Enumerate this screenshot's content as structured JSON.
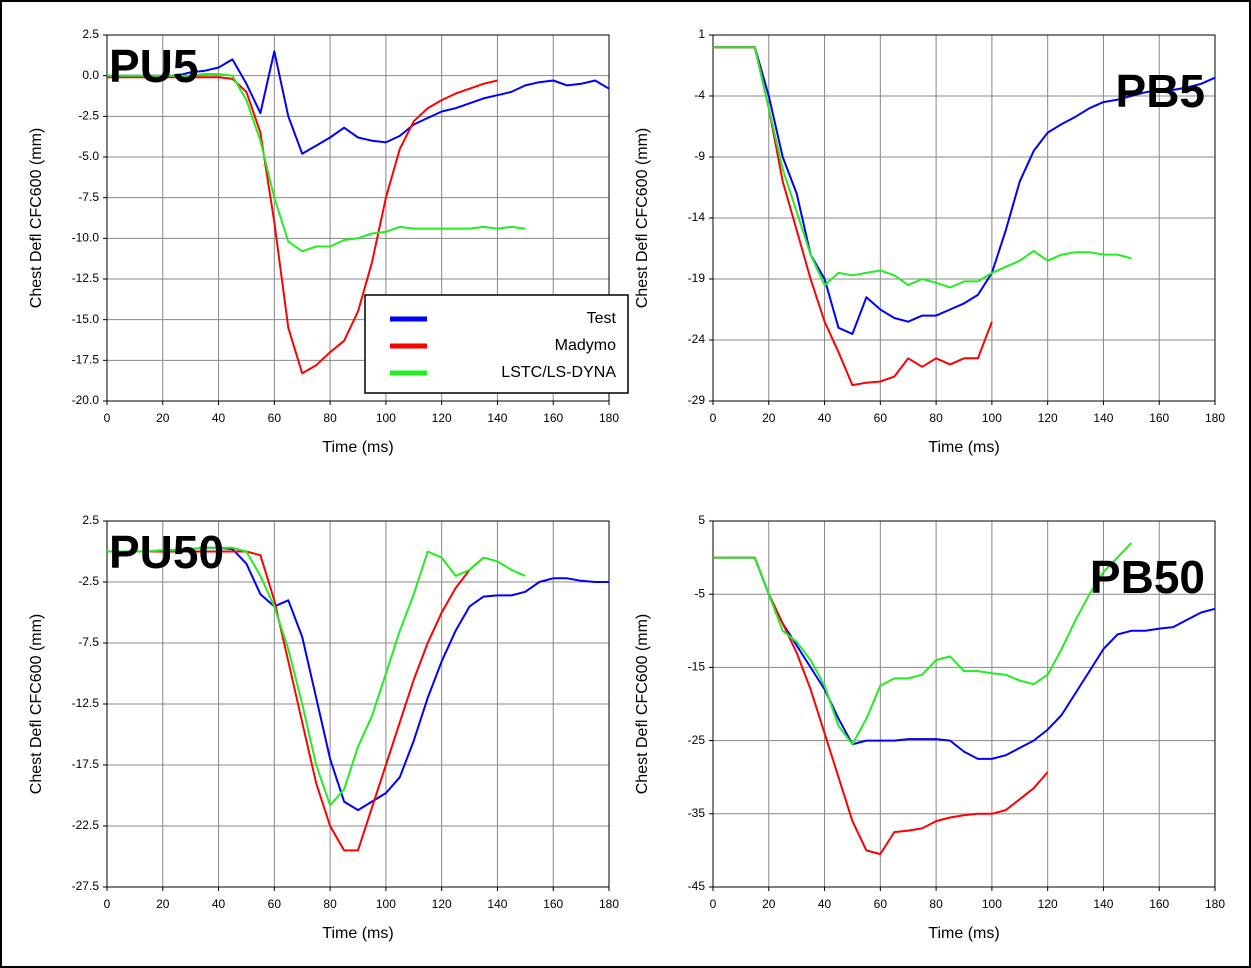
{
  "chart_data": [
    {
      "type": "line",
      "title": "PU5",
      "title_corner": "upper left",
      "x_label": "Time (ms)",
      "y_label": "Chest Defl CFC600 (mm)",
      "x": [
        0,
        5,
        10,
        15,
        20,
        25,
        30,
        35,
        40,
        45,
        50,
        55,
        60,
        65,
        70,
        75,
        80,
        85,
        90,
        95,
        100,
        105,
        110,
        115,
        120,
        125,
        130,
        135,
        140,
        145,
        150,
        155,
        160,
        165,
        170,
        175,
        180
      ],
      "series": [
        {
          "name": "Test",
          "color": "#0000ff",
          "values": [
            0,
            0,
            0,
            0,
            0,
            0,
            0.2,
            0.3,
            0.5,
            1.0,
            -0.5,
            -2.3,
            1.5,
            -2.5,
            -4.8,
            -4.3,
            -3.8,
            -3.2,
            -3.8,
            -4.0,
            -4.1,
            -3.7,
            -3.0,
            -2.6,
            -2.2,
            -2.0,
            -1.7,
            -1.4,
            -1.2,
            -1.0,
            -0.6,
            -0.4,
            -0.3,
            -0.6,
            -0.5,
            -0.3,
            -0.8
          ]
        },
        {
          "name": "Madymo",
          "color": "#ff0000",
          "values": [
            -0.1,
            -0.1,
            -0.1,
            -0.1,
            -0.1,
            -0.1,
            -0.1,
            -0.1,
            -0.1,
            -0.2,
            -1.0,
            -3.5,
            -9,
            -15.5,
            -18.3,
            -17.8,
            -17,
            -16.3,
            -14.5,
            -11.5,
            -7.5,
            -4.5,
            -2.8,
            -2.0,
            -1.5,
            -1.1,
            -0.8,
            -0.5,
            -0.3,
            null,
            null,
            null,
            null,
            null,
            null,
            null,
            null
          ]
        },
        {
          "name": "LSTC/LS-DYNA",
          "color": "#22ee22",
          "values": [
            0,
            0,
            0,
            0,
            0,
            0,
            0,
            0.1,
            0.1,
            0,
            -1.5,
            -4,
            -7.5,
            -10.2,
            -10.8,
            -10.5,
            -10.5,
            -10.1,
            -10,
            -9.7,
            -9.6,
            -9.3,
            -9.4,
            -9.4,
            -9.4,
            -9.4,
            -9.4,
            -9.3,
            -9.4,
            -9.3,
            -9.4,
            null,
            null,
            null,
            null,
            null,
            null
          ]
        }
      ],
      "xlim": [
        0,
        180
      ],
      "xticks": [
        0,
        20,
        40,
        60,
        80,
        100,
        120,
        140,
        160,
        180
      ],
      "ylim": [
        -20,
        2.5
      ],
      "yticks": [
        2.5,
        {
          "value": 0,
          "label": "0.0"
        },
        -2.5,
        {
          "value": -5,
          "label": "-5.0"
        },
        -7.5,
        {
          "value": -10,
          "label": "-10.0"
        },
        -12.5,
        {
          "value": -15,
          "label": "-15.0"
        },
        -17.5,
        {
          "value": -20,
          "label": "-20.0"
        }
      ],
      "grid": true,
      "legend": "lower right"
    },
    {
      "type": "line",
      "title": "PB5",
      "title_corner": "upper right",
      "x_label": "Time (ms)",
      "y_label": "Chest Defl CFC600 (mm)",
      "x": [
        0,
        5,
        10,
        15,
        20,
        25,
        30,
        35,
        40,
        45,
        50,
        55,
        60,
        65,
        70,
        75,
        80,
        85,
        90,
        95,
        100,
        105,
        110,
        115,
        120,
        125,
        130,
        135,
        140,
        145,
        150,
        155,
        160,
        165,
        170,
        175,
        180
      ],
      "series": [
        {
          "name": "Test",
          "color": "#0000ff",
          "values": [
            0,
            0,
            0,
            0,
            -4,
            -9,
            -12,
            -17,
            -19,
            -23,
            -23.5,
            -20.5,
            -21.5,
            -22.2,
            -22.5,
            -22,
            -22,
            -21.5,
            -21,
            -20.3,
            -18.5,
            -15,
            -11,
            -8.5,
            -7,
            -6.3,
            -5.7,
            -5,
            -4.5,
            -4.3,
            -4,
            -3.7,
            -3.5,
            -3.5,
            -3.3,
            -3,
            -2.5
          ]
        },
        {
          "name": "Madymo",
          "color": "#ff0000",
          "values": [
            0,
            0,
            0,
            0,
            -5,
            -11,
            -15,
            -19,
            -22.5,
            -25,
            -27.7,
            -27.5,
            -27.4,
            -27,
            -25.5,
            -26.2,
            -25.5,
            -26,
            -25.5,
            -25.5,
            -22.5,
            null,
            null,
            null,
            null,
            null,
            null,
            null,
            null,
            null,
            null,
            null,
            null,
            null,
            null,
            null,
            null
          ]
        },
        {
          "name": "LSTC/LS-DYNA",
          "color": "#22ee22",
          "values": [
            0,
            0,
            0,
            0,
            -5,
            -10,
            -13.5,
            -17,
            -19.5,
            -18.5,
            -18.7,
            -18.5,
            -18.3,
            -18.7,
            -19.5,
            -19,
            -19.3,
            -19.7,
            -19.2,
            -19.2,
            -18.5,
            -18,
            -17.5,
            -16.7,
            -17.5,
            -17,
            -16.8,
            -16.8,
            -17,
            -17,
            -17.3,
            null,
            null,
            null,
            null,
            null,
            null
          ]
        }
      ],
      "xlim": [
        0,
        180
      ],
      "xticks": [
        0,
        20,
        40,
        60,
        80,
        100,
        120,
        140,
        160,
        180
      ],
      "ylim": [
        -29,
        1
      ],
      "yticks": [
        1,
        -4,
        -9,
        -14,
        -19,
        -24,
        -29
      ],
      "grid": true
    },
    {
      "type": "line",
      "title": "PU50",
      "title_corner": "upper left",
      "x_label": "Time (ms)",
      "y_label": "Chest Defl CFC600 (mm)",
      "x": [
        0,
        5,
        10,
        15,
        20,
        25,
        30,
        35,
        40,
        45,
        50,
        55,
        60,
        65,
        70,
        75,
        80,
        85,
        90,
        95,
        100,
        105,
        110,
        115,
        120,
        125,
        130,
        135,
        140,
        145,
        150,
        155,
        160,
        165,
        170,
        175,
        180
      ],
      "series": [
        {
          "name": "Test",
          "color": "#0000ff",
          "values": [
            0,
            0,
            0,
            0,
            0.1,
            0.1,
            0.2,
            0.3,
            0.3,
            0.2,
            -1,
            -3.5,
            -4.5,
            -4,
            -7,
            -12,
            -17,
            -20.5,
            -21.2,
            -20.5,
            -19.8,
            -18.5,
            -15.5,
            -12,
            -9,
            -6.5,
            -4.5,
            -3.7,
            -3.6,
            -3.6,
            -3.3,
            -2.5,
            -2.2,
            -2.2,
            -2.4,
            -2.5,
            -2.5
          ]
        },
        {
          "name": "Madymo",
          "color": "#ff0000",
          "values": [
            0,
            0,
            0,
            0,
            0,
            0,
            0,
            0,
            0,
            0,
            0,
            -0.3,
            -4,
            -9,
            -14,
            -19,
            -22.5,
            -24.5,
            -24.5,
            -21,
            -17.5,
            -14,
            -10.5,
            -7.5,
            -5,
            -3,
            -1.5,
            -0.5,
            null,
            null,
            null,
            null,
            null,
            null,
            null,
            null,
            null
          ]
        },
        {
          "name": "LSTC/LS-DYNA",
          "color": "#22ee22",
          "values": [
            0,
            0,
            0,
            0,
            0.1,
            0.1,
            0.2,
            0.3,
            0.3,
            0.3,
            0,
            -2,
            -4.5,
            -8,
            -12.5,
            -17.5,
            -20.8,
            -19.5,
            -16,
            -13.5,
            -10,
            -6.5,
            -3.5,
            0,
            -0.5,
            -2,
            -1.5,
            -0.5,
            -0.8,
            -1.5,
            -2,
            null,
            null,
            null,
            null,
            null,
            null
          ]
        }
      ],
      "xlim": [
        0,
        180
      ],
      "xticks": [
        0,
        20,
        40,
        60,
        80,
        100,
        120,
        140,
        160,
        180
      ],
      "ylim": [
        -27.5,
        2.5
      ],
      "yticks": [
        2.5,
        -2.5,
        -7.5,
        -12.5,
        -17.5,
        -22.5,
        -27.5
      ],
      "grid": true
    },
    {
      "type": "line",
      "title": "PB50",
      "title_corner": "upper right",
      "x_label": "Time (ms)",
      "y_label": "Chest Defl CFC600 (mm)",
      "x": [
        0,
        5,
        10,
        15,
        20,
        25,
        30,
        35,
        40,
        45,
        50,
        55,
        60,
        65,
        70,
        75,
        80,
        85,
        90,
        95,
        100,
        105,
        110,
        115,
        120,
        125,
        130,
        135,
        140,
        145,
        150,
        155,
        160,
        165,
        170,
        175,
        180
      ],
      "series": [
        {
          "name": "Test",
          "color": "#0000ff",
          "values": [
            0,
            0,
            0,
            0,
            -5,
            -9,
            -12,
            -15,
            -18,
            -22,
            -25.5,
            -25,
            -25,
            -25,
            -24.8,
            -24.8,
            -24.8,
            -25,
            -26.5,
            -27.5,
            -27.5,
            -27,
            -26,
            -25,
            -23.5,
            -21.5,
            -18.5,
            -15.5,
            -12.5,
            -10.5,
            -10,
            -10,
            -9.7,
            -9.5,
            -8.5,
            -7.5,
            -7
          ]
        },
        {
          "name": "Madymo",
          "color": "#ff0000",
          "values": [
            0,
            0,
            0,
            0,
            -5,
            -9,
            -13,
            -18,
            -24,
            -30,
            -36,
            -40,
            -40.5,
            -37.5,
            -37.3,
            -37,
            -36,
            -35.5,
            -35.2,
            -35,
            -35,
            -34.5,
            -33,
            -31.5,
            -29.3,
            null,
            null,
            null,
            null,
            null,
            null,
            null,
            null,
            null,
            null,
            null,
            null
          ]
        },
        {
          "name": "LSTC/LS-DYNA",
          "color": "#22ee22",
          "values": [
            0,
            0,
            0,
            0,
            -5,
            -10,
            -11.5,
            -14,
            -17.5,
            -23,
            -25.5,
            -22,
            -17.5,
            -16.5,
            -16.5,
            -16,
            -14,
            -13.5,
            -15.5,
            -15.5,
            -15.8,
            -16,
            -16.8,
            -17.3,
            -16,
            -12.5,
            -8.5,
            -5,
            -2,
            0,
            2,
            null,
            null,
            null,
            null,
            null,
            null
          ]
        }
      ],
      "xlim": [
        0,
        180
      ],
      "xticks": [
        0,
        20,
        40,
        60,
        80,
        100,
        120,
        140,
        160,
        180
      ],
      "ylim": [
        -45,
        5
      ],
      "yticks": [
        5,
        -5,
        -15,
        -25,
        -35,
        -45
      ],
      "grid": true
    }
  ]
}
